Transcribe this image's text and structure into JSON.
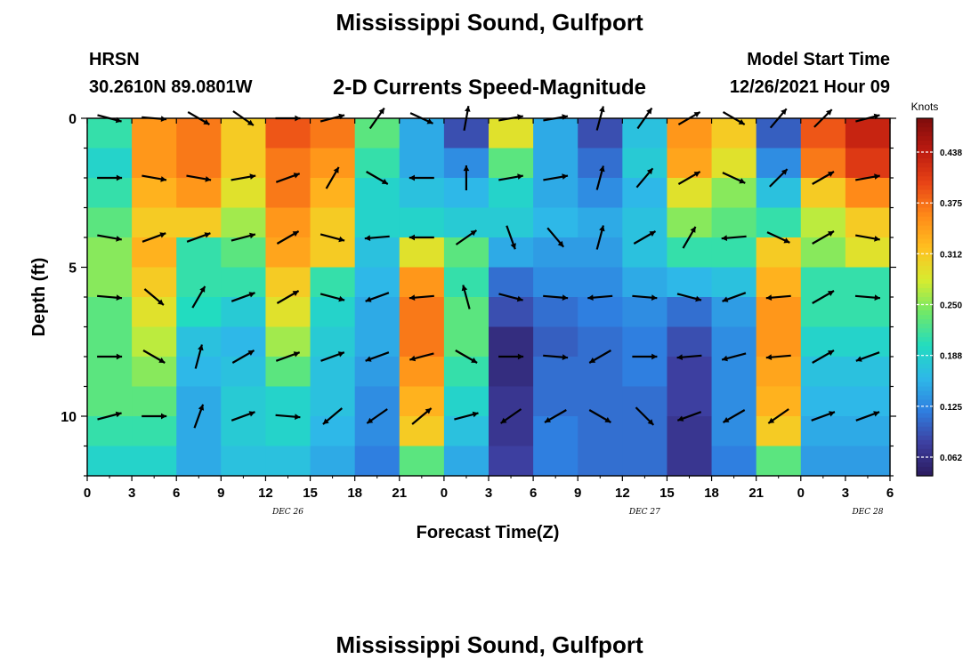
{
  "page": {
    "title_top": "Mississippi Sound, Gulfport",
    "title_bottom": "Mississippi Sound, Gulfport",
    "station_id": "HRSN",
    "station_coords": "30.2610N  89.0801W",
    "subtitle": "2-D Currents Speed-Magnitude",
    "model_start_label": "Model Start Time",
    "model_start_value": "12/26/2021 Hour 09"
  },
  "chart_data": {
    "type": "heatmap",
    "title": "2-D Currents Speed-Magnitude",
    "xlabel": "Forecast Time(Z)",
    "ylabel": "Depth (ft)",
    "x_tick_labels": [
      "0",
      "3",
      "6",
      "9",
      "12",
      "15",
      "18",
      "21",
      "0",
      "3",
      "6",
      "9",
      "12",
      "15",
      "18",
      "21",
      "0",
      "3",
      "6"
    ],
    "x_date_labels": [
      {
        "label": "DEC 26",
        "tick": 4.5
      },
      {
        "label": "DEC 27",
        "tick": 12.5
      },
      {
        "label": "DEC 28",
        "tick": 17.5
      }
    ],
    "y_ticks": [
      0,
      5,
      10
    ],
    "ylim": [
      0,
      12
    ],
    "xlim_hours": [
      0,
      54
    ],
    "colorbar": {
      "unit": "Knots",
      "tick_labels": [
        "0.438",
        "0.375",
        "0.312",
        "0.250",
        "0.188",
        "0.125",
        "0.062"
      ],
      "range": [
        0.03,
        0.47
      ],
      "colors": [
        "#2b1a5e",
        "#3d3fa0",
        "#2f7fe0",
        "#2eb8e8",
        "#22dcc0",
        "#6ee86a",
        "#d6ec30",
        "#ffc020",
        "#ff8a18",
        "#e84416",
        "#bc1a10",
        "#7e0c0c"
      ]
    },
    "depth_rows_ft": [
      0,
      1,
      2,
      3,
      4,
      5,
      6,
      7,
      8,
      9,
      10,
      11
    ],
    "column_hours": [
      0,
      3,
      6,
      9,
      12,
      15,
      18,
      21,
      24,
      27,
      30,
      33,
      36,
      39,
      42,
      45,
      48,
      51
    ],
    "speed_knots": [
      [
        0.2,
        0.34,
        0.36,
        0.3,
        0.38,
        0.36,
        0.22,
        0.14,
        0.08,
        0.28,
        0.14,
        0.08,
        0.16,
        0.34,
        0.3,
        0.09,
        0.38,
        0.42
      ],
      [
        0.18,
        0.34,
        0.36,
        0.3,
        0.36,
        0.34,
        0.2,
        0.14,
        0.12,
        0.22,
        0.14,
        0.1,
        0.17,
        0.33,
        0.28,
        0.12,
        0.36,
        0.4
      ],
      [
        0.2,
        0.32,
        0.34,
        0.28,
        0.36,
        0.32,
        0.18,
        0.16,
        0.15,
        0.18,
        0.14,
        0.12,
        0.15,
        0.28,
        0.24,
        0.16,
        0.3,
        0.35
      ],
      [
        0.22,
        0.3,
        0.3,
        0.25,
        0.34,
        0.3,
        0.18,
        0.18,
        0.17,
        0.17,
        0.15,
        0.14,
        0.16,
        0.24,
        0.22,
        0.2,
        0.26,
        0.3
      ],
      [
        0.24,
        0.32,
        0.2,
        0.22,
        0.33,
        0.3,
        0.16,
        0.28,
        0.22,
        0.14,
        0.13,
        0.13,
        0.16,
        0.2,
        0.2,
        0.3,
        0.24,
        0.28
      ],
      [
        0.24,
        0.3,
        0.2,
        0.2,
        0.3,
        0.2,
        0.15,
        0.34,
        0.2,
        0.1,
        0.12,
        0.12,
        0.14,
        0.15,
        0.16,
        0.32,
        0.2,
        0.2
      ],
      [
        0.22,
        0.28,
        0.19,
        0.17,
        0.28,
        0.18,
        0.14,
        0.36,
        0.22,
        0.08,
        0.1,
        0.11,
        0.12,
        0.1,
        0.13,
        0.34,
        0.2,
        0.2
      ],
      [
        0.22,
        0.26,
        0.16,
        0.15,
        0.25,
        0.17,
        0.14,
        0.36,
        0.22,
        0.05,
        0.09,
        0.1,
        0.11,
        0.08,
        0.12,
        0.34,
        0.18,
        0.18
      ],
      [
        0.22,
        0.24,
        0.15,
        0.16,
        0.22,
        0.16,
        0.13,
        0.34,
        0.2,
        0.05,
        0.1,
        0.1,
        0.11,
        0.07,
        0.12,
        0.33,
        0.16,
        0.16
      ],
      [
        0.22,
        0.22,
        0.14,
        0.17,
        0.18,
        0.16,
        0.12,
        0.32,
        0.18,
        0.06,
        0.1,
        0.1,
        0.1,
        0.07,
        0.12,
        0.32,
        0.15,
        0.15
      ],
      [
        0.2,
        0.2,
        0.14,
        0.17,
        0.18,
        0.15,
        0.12,
        0.3,
        0.16,
        0.06,
        0.11,
        0.1,
        0.1,
        0.06,
        0.12,
        0.3,
        0.14,
        0.14
      ],
      [
        0.18,
        0.18,
        0.14,
        0.16,
        0.16,
        0.14,
        0.11,
        0.22,
        0.14,
        0.07,
        0.11,
        0.1,
        0.1,
        0.06,
        0.11,
        0.22,
        0.13,
        0.13
      ]
    ],
    "vector_depths_ft": [
      0,
      2,
      4,
      6,
      8,
      10
    ],
    "vector_hours": [
      1.5,
      4.5,
      7.5,
      10.5,
      13.5,
      16.5,
      19.5,
      22.5,
      25.5,
      28.5,
      31.5,
      34.5,
      37.5,
      40.5,
      43.5,
      46.5,
      49.5,
      52.5
    ],
    "vector_direction_deg": [
      [
        105,
        95,
        120,
        125,
        90,
        75,
        35,
        115,
        10,
        80,
        80,
        15,
        35,
        60,
        120,
        40,
        45,
        75
      ],
      [
        90,
        100,
        100,
        80,
        70,
        30,
        120,
        270,
        0,
        80,
        80,
        15,
        40,
        60,
        115,
        45,
        60,
        80
      ],
      [
        100,
        70,
        70,
        75,
        60,
        105,
        265,
        270,
        55,
        160,
        140,
        15,
        60,
        30,
        265,
        115,
        60,
        100
      ],
      [
        95,
        130,
        30,
        70,
        60,
        105,
        250,
        265,
        345,
        105,
        95,
        265,
        95,
        105,
        250,
        265,
        60,
        95
      ],
      [
        90,
        120,
        15,
        60,
        70,
        70,
        250,
        255,
        120,
        90,
        95,
        240,
        90,
        265,
        255,
        265,
        60,
        250
      ],
      [
        75,
        90,
        20,
        70,
        95,
        230,
        235,
        50,
        75,
        235,
        240,
        120,
        135,
        250,
        240,
        235,
        70,
        70
      ]
    ]
  }
}
